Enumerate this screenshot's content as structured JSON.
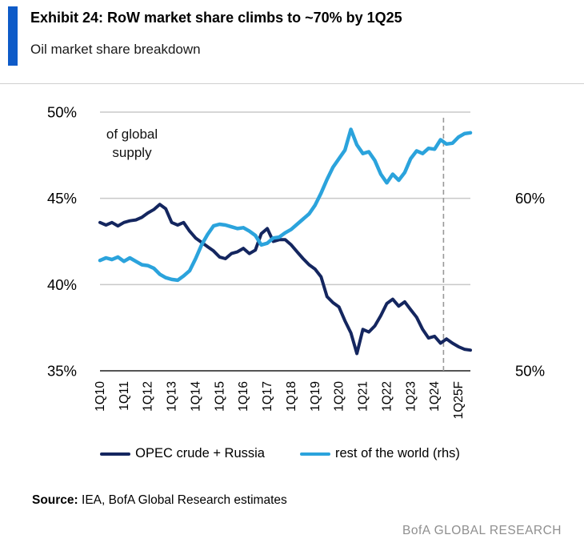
{
  "header": {
    "title": "Exhibit 24: RoW market share climbs to ~70% by 1Q25",
    "subtitle": "Oil market share breakdown"
  },
  "footer": {
    "source_label": "Source:",
    "source_text": "IEA, BofA Global Research estimates",
    "brand": "BofA GLOBAL RESEARCH"
  },
  "colors": {
    "accent_bar": "#0E5BC8",
    "navy_series": "#14265F",
    "blue_series": "#2BA3DC",
    "gridline": "#C9C9C9",
    "axis_baseline": "#3D3D3D",
    "forecast_divider": "#999999",
    "brand_gray": "#8F8F8F"
  },
  "chart_data": {
    "type": "line",
    "title": "Exhibit 24: RoW market share climbs to ~70% by 1Q25",
    "subtitle": "Oil market share breakdown",
    "annotation_lines": [
      "of global",
      "supply"
    ],
    "grid": true,
    "legend_position": "bottom",
    "x_tick_every": 4,
    "forecast_divider_index": 57.5,
    "x": [
      "1Q10",
      "2Q10",
      "3Q10",
      "4Q10",
      "1Q11",
      "2Q11",
      "3Q11",
      "4Q11",
      "1Q12",
      "2Q12",
      "3Q12",
      "4Q12",
      "1Q13",
      "2Q13",
      "3Q13",
      "4Q13",
      "1Q14",
      "2Q14",
      "3Q14",
      "4Q14",
      "1Q15",
      "2Q15",
      "3Q15",
      "4Q15",
      "1Q16",
      "2Q16",
      "3Q16",
      "4Q16",
      "1Q17",
      "2Q17",
      "3Q17",
      "4Q17",
      "1Q18",
      "2Q18",
      "3Q18",
      "4Q18",
      "1Q19",
      "2Q19",
      "3Q19",
      "4Q19",
      "1Q20",
      "2Q20",
      "3Q20",
      "4Q20",
      "1Q21",
      "2Q21",
      "3Q21",
      "4Q21",
      "1Q22",
      "2Q22",
      "3Q22",
      "4Q22",
      "1Q23",
      "2Q23",
      "3Q23",
      "4Q23",
      "1Q24",
      "2Q24",
      "3Q24",
      "4Q24",
      "1Q25F",
      "2Q25F",
      "3Q25F"
    ],
    "left_axis": {
      "min": 35,
      "max": 50,
      "ticks": [
        {
          "value": 50,
          "label": "50%"
        },
        {
          "value": 45,
          "label": "45%"
        },
        {
          "value": 40,
          "label": "40%"
        },
        {
          "value": 35,
          "label": "35%"
        }
      ]
    },
    "right_axis": {
      "min": 50,
      "max": 65,
      "ticks": [
        {
          "value": 60,
          "label": "60%"
        },
        {
          "value": 50,
          "label": "50%"
        }
      ]
    },
    "series": [
      {
        "name": "OPEC crude + Russia",
        "axis": "left",
        "color": "#14265F",
        "values": [
          43.6,
          43.45,
          43.6,
          43.4,
          43.6,
          43.7,
          43.75,
          43.9,
          44.15,
          44.35,
          44.65,
          44.4,
          43.6,
          43.45,
          43.6,
          43.1,
          42.7,
          42.45,
          42.2,
          41.95,
          41.6,
          41.5,
          41.8,
          41.9,
          42.1,
          41.8,
          42.0,
          42.95,
          43.25,
          42.5,
          42.6,
          42.6,
          42.3,
          41.9,
          41.5,
          41.15,
          40.9,
          40.45,
          39.3,
          38.95,
          38.7,
          37.9,
          37.2,
          36.0,
          37.4,
          37.25,
          37.6,
          38.2,
          38.9,
          39.15,
          38.75,
          39.0,
          38.55,
          38.1,
          37.4,
          36.9,
          37.0,
          36.6,
          36.85,
          36.6,
          36.4,
          36.25,
          36.2
        ]
      },
      {
        "name": "rest of the world (rhs)",
        "axis": "right",
        "color": "#2BA3DC",
        "values": [
          56.4,
          56.55,
          56.45,
          56.6,
          56.35,
          56.55,
          56.35,
          56.15,
          56.1,
          55.95,
          55.6,
          55.4,
          55.3,
          55.25,
          55.5,
          55.8,
          56.5,
          57.3,
          57.9,
          58.4,
          58.5,
          58.45,
          58.35,
          58.25,
          58.3,
          58.1,
          57.85,
          57.3,
          57.4,
          57.7,
          57.75,
          58.0,
          58.2,
          58.5,
          58.8,
          59.1,
          59.6,
          60.3,
          61.1,
          61.8,
          62.3,
          62.8,
          64.0,
          63.1,
          62.6,
          62.7,
          62.2,
          61.4,
          60.9,
          61.4,
          61.05,
          61.5,
          62.3,
          62.75,
          62.6,
          62.9,
          62.85,
          63.4,
          63.15,
          63.2,
          63.55,
          63.75,
          63.8
        ]
      }
    ]
  }
}
